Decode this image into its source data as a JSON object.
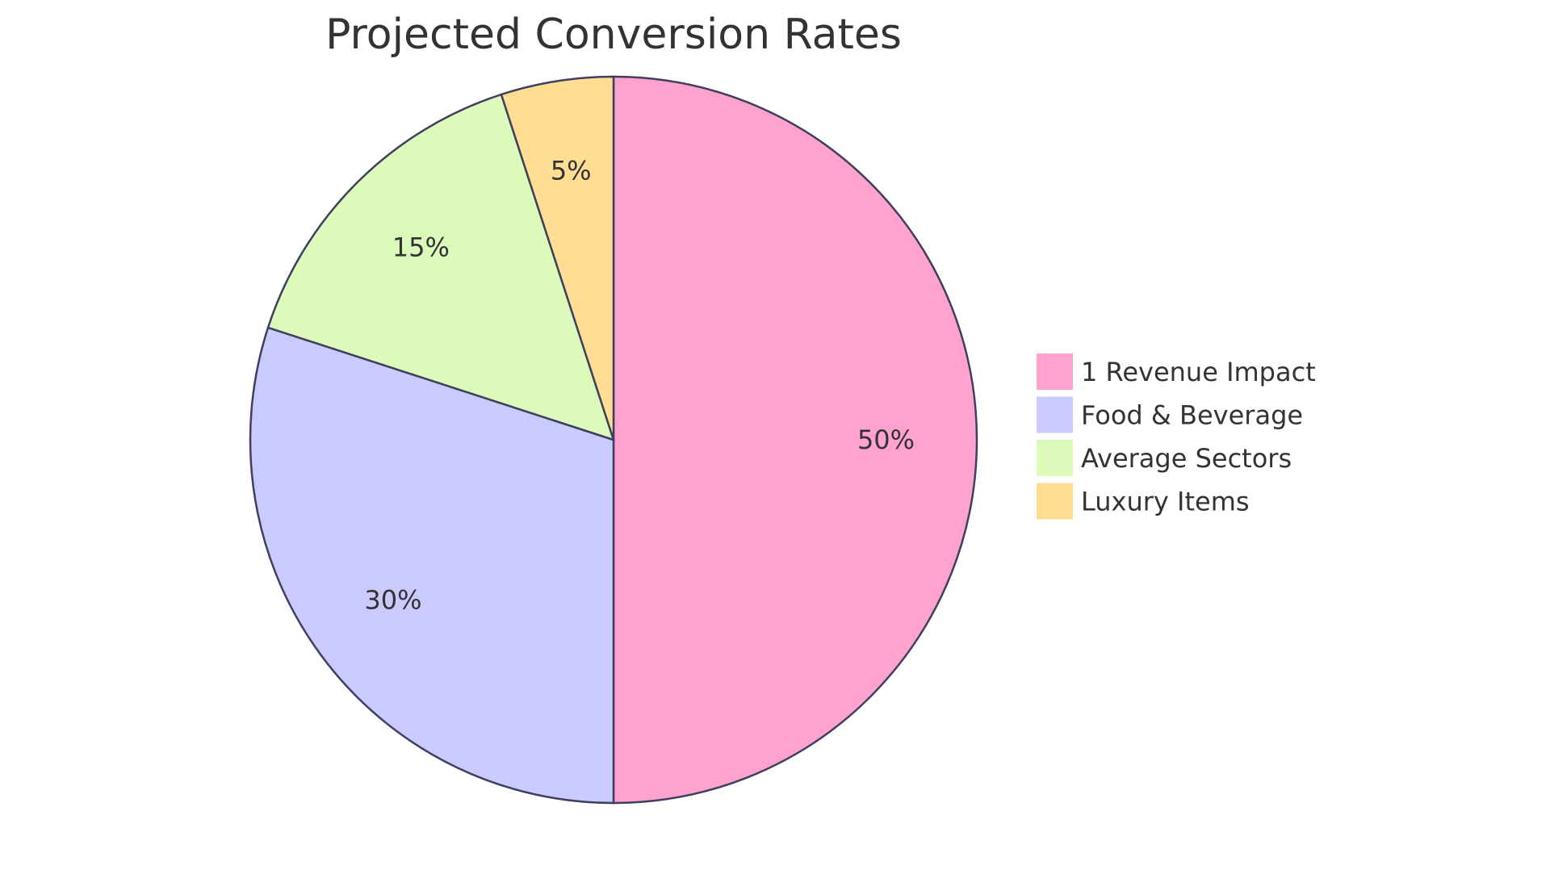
{
  "chart_data": {
    "type": "pie",
    "title": "Projected Conversion Rates",
    "categories": [
      "1 Revenue Impact",
      "Food & Beverage",
      "Average Sectors",
      "Luxury Items"
    ],
    "values": [
      50,
      30,
      15,
      5
    ],
    "labels": [
      "50%",
      "30%",
      "15%",
      "5%"
    ],
    "colors": [
      "#FFA3CE",
      "#CACAFF",
      "#DCFABA",
      "#FFDE94"
    ],
    "stroke_color": "#3F3F5F",
    "legend_position": "right",
    "start_angle": "12 o'clock, clockwise"
  }
}
